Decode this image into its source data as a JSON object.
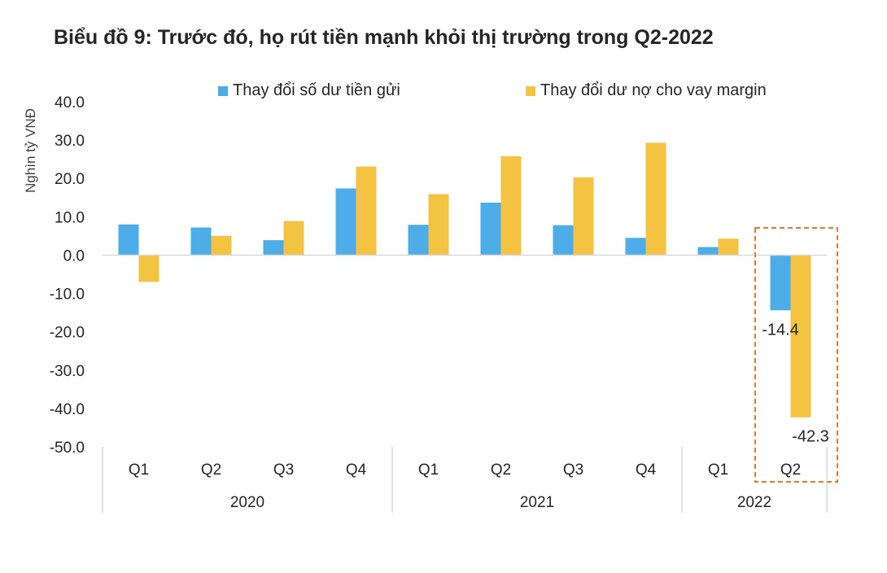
{
  "title": "Biểu đồ 9: Trước đó, họ rút tiền mạnh khỏi thị trường trong Q2-2022",
  "chart_data": {
    "type": "bar",
    "title": "Biểu đồ 9: Trước đó, họ rút tiền mạnh khỏi thị trường trong Q2-2022",
    "ylabel": "Nghìn tỷ VNĐ",
    "xlabel": "",
    "ylim": [
      -50,
      40
    ],
    "yticks": [
      "40.0",
      "30.0",
      "20.0",
      "10.0",
      "0.0",
      "-10.0",
      "-20.0",
      "-30.0",
      "-40.0",
      "-50.0"
    ],
    "ytick_values": [
      40,
      30,
      20,
      10,
      0,
      -10,
      -20,
      -30,
      -40,
      -50
    ],
    "categories": [
      "Q1",
      "Q2",
      "Q3",
      "Q4",
      "Q1",
      "Q2",
      "Q3",
      "Q4",
      "Q1",
      "Q2"
    ],
    "years": [
      {
        "label": "2020",
        "count": 4
      },
      {
        "label": "2021",
        "count": 4
      },
      {
        "label": "2022",
        "count": 2
      }
    ],
    "series": [
      {
        "name": "Thay đổi số dư tiền gửi",
        "color": "#4DADE8",
        "values": [
          8.0,
          7.2,
          3.9,
          17.4,
          7.9,
          13.7,
          7.8,
          4.5,
          2.1,
          -14.4
        ]
      },
      {
        "name": "Thay đổi dư nợ cho vay margin",
        "color": "#F5C342",
        "values": [
          -7.0,
          5.0,
          8.9,
          23.1,
          15.9,
          25.8,
          20.3,
          29.3,
          4.3,
          -42.3
        ]
      }
    ],
    "data_labels": [
      {
        "series": 0,
        "index": 9,
        "text": "-14.4"
      },
      {
        "series": 1,
        "index": 9,
        "text": "-42.3"
      }
    ],
    "highlight": {
      "index": 9,
      "color": "#E07B2A"
    },
    "grid": false,
    "legend_position": "top"
  }
}
